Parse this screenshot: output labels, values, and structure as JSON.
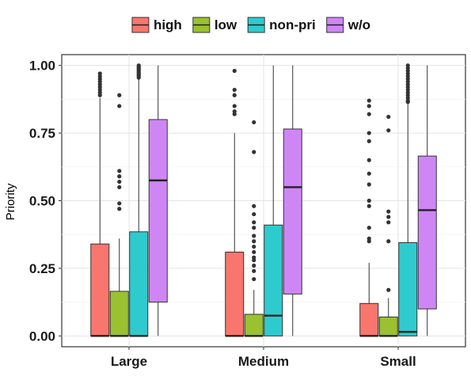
{
  "chart_data": {
    "type": "boxplot",
    "title": "",
    "xlabel": "",
    "ylabel": "Priority",
    "ylim": [
      -0.04,
      1.04
    ],
    "yticks": [
      0.0,
      0.25,
      0.5,
      0.75,
      1.0
    ],
    "ytick_labels": [
      "0.00",
      "0.25",
      "0.50",
      "0.75",
      "1.00"
    ],
    "grid": true,
    "legend_position": "top",
    "categories": [
      "Large",
      "Medium",
      "Small"
    ],
    "series": [
      {
        "name": "high",
        "color": "#f8766d",
        "boxes": [
          {
            "q1": 0.0,
            "median": 0.0,
            "q3": 0.34,
            "whisker_low": 0.0,
            "whisker_high": 0.88,
            "outliers": [
              0.89,
              0.9,
              0.91,
              0.92,
              0.93,
              0.94,
              0.95,
              0.96,
              0.97
            ]
          },
          {
            "q1": 0.0,
            "median": 0.0,
            "q3": 0.31,
            "whisker_low": 0.0,
            "whisker_high": 0.75,
            "outliers": [
              0.82,
              0.83,
              0.85,
              0.89,
              0.91,
              0.98
            ]
          },
          {
            "q1": 0.0,
            "median": 0.0,
            "q3": 0.12,
            "whisker_low": 0.0,
            "whisker_high": 0.27,
            "outliers": [
              0.35,
              0.36,
              0.4,
              0.48,
              0.5,
              0.56,
              0.6,
              0.65,
              0.72,
              0.75,
              0.82,
              0.85,
              0.87
            ]
          }
        ]
      },
      {
        "name": "low",
        "color": "#9ac130",
        "boxes": [
          {
            "q1": 0.0,
            "median": 0.0,
            "q3": 0.165,
            "whisker_low": 0.0,
            "whisker_high": 0.36,
            "outliers": [
              0.47,
              0.49,
              0.55,
              0.57,
              0.59,
              0.61,
              0.85,
              0.89
            ]
          },
          {
            "q1": 0.0,
            "median": 0.0,
            "q3": 0.08,
            "whisker_low": 0.0,
            "whisker_high": 0.17,
            "outliers": [
              0.21,
              0.24,
              0.26,
              0.28,
              0.29,
              0.31,
              0.33,
              0.35,
              0.37,
              0.4,
              0.42,
              0.45,
              0.48,
              0.68,
              0.79
            ]
          },
          {
            "q1": 0.0,
            "median": 0.0,
            "q3": 0.07,
            "whisker_low": 0.0,
            "whisker_high": 0.14,
            "outliers": [
              0.17,
              0.35,
              0.42,
              0.44,
              0.46,
              0.76,
              0.81
            ]
          }
        ]
      },
      {
        "name": "non-pri",
        "color": "#2ecbce",
        "boxes": [
          {
            "q1": 0.0,
            "median": 0.0,
            "q3": 0.385,
            "whisker_low": 0.0,
            "whisker_high": 0.95,
            "outliers": [
              0.955,
              0.96,
              0.965,
              0.97,
              0.975,
              0.98,
              0.985,
              0.99,
              0.995,
              1.0
            ]
          },
          {
            "q1": 0.0,
            "median": 0.075,
            "q3": 0.41,
            "whisker_low": 0.0,
            "whisker_high": 1.0,
            "outliers": []
          },
          {
            "q1": 0.0,
            "median": 0.015,
            "q3": 0.345,
            "whisker_low": 0.0,
            "whisker_high": 0.86,
            "outliers": [
              0.865,
              0.87,
              0.88,
              0.89,
              0.9,
              0.91,
              0.92,
              0.93,
              0.94,
              0.95,
              0.96,
              0.97,
              0.98,
              0.99,
              1.0
            ]
          }
        ]
      },
      {
        "name": "w/o",
        "color": "#cf86f5",
        "boxes": [
          {
            "q1": 0.125,
            "median": 0.575,
            "q3": 0.8,
            "whisker_low": 0.0,
            "whisker_high": 1.0,
            "outliers": []
          },
          {
            "q1": 0.155,
            "median": 0.55,
            "q3": 0.765,
            "whisker_low": 0.0,
            "whisker_high": 1.0,
            "outliers": []
          },
          {
            "q1": 0.1,
            "median": 0.465,
            "q3": 0.665,
            "whisker_low": 0.0,
            "whisker_high": 1.0,
            "outliers": []
          }
        ]
      }
    ]
  }
}
